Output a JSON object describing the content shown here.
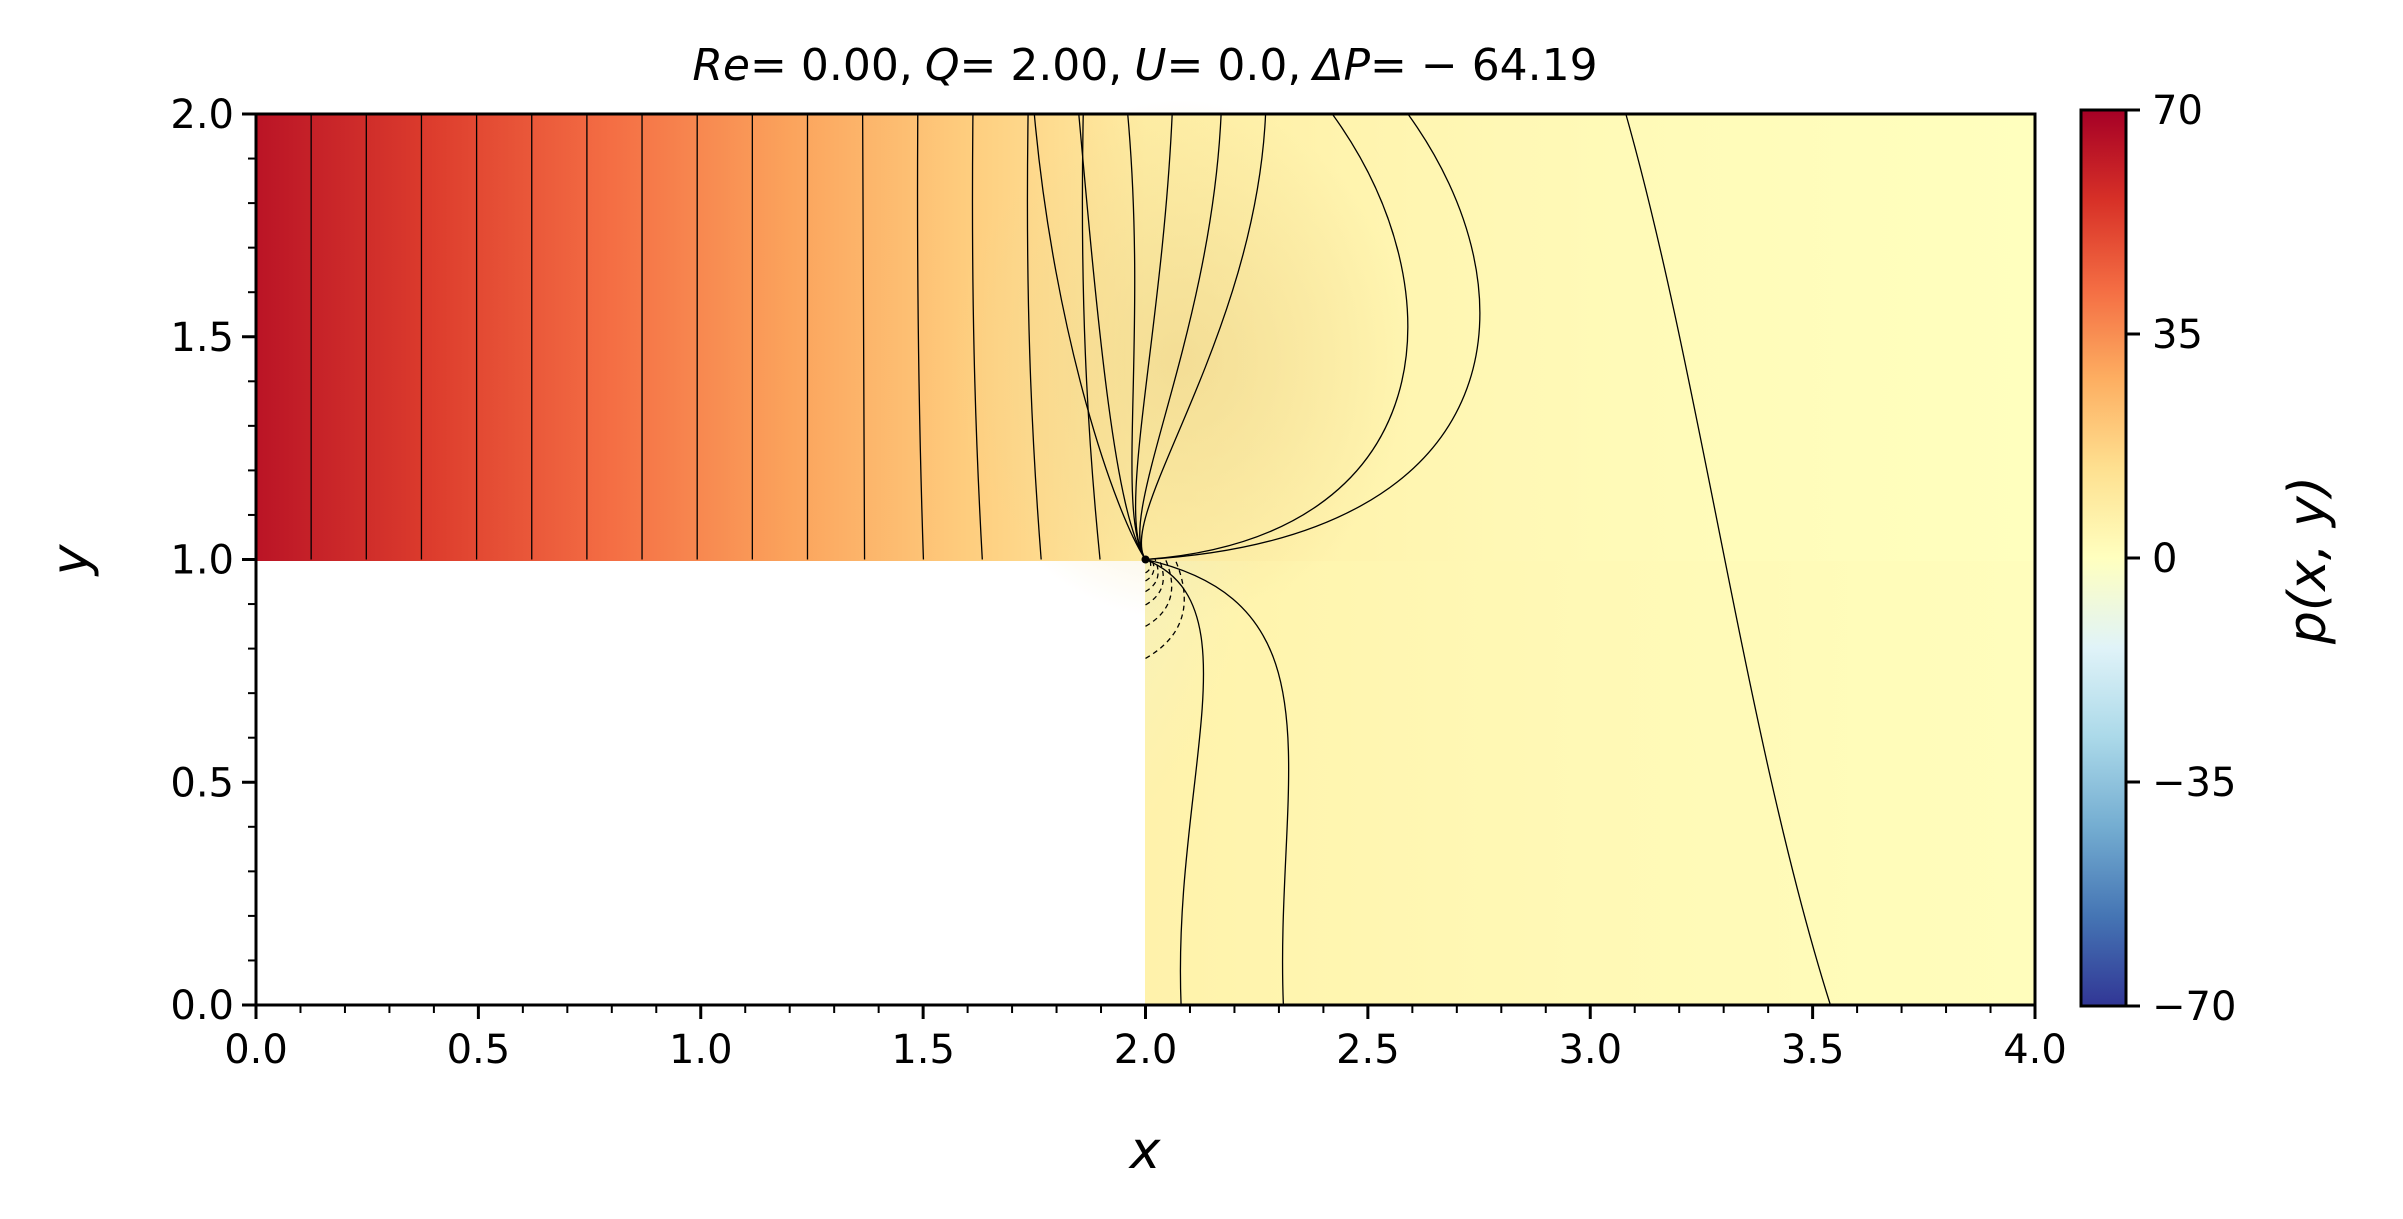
{
  "chart_data": {
    "type": "heatmap",
    "title_parts": {
      "re_label": "Re",
      "re_value": "= 0.00",
      "q_label": "Q",
      "q_value": "= 2.00",
      "u_label": "U",
      "u_value": "= 0.0",
      "dp_label": "ΔP",
      "dp_value": "= − 64.19",
      "separator": ","
    },
    "xlabel": "x",
    "ylabel": "y",
    "colorbar_label": "p(x, y)",
    "xlim": [
      0.0,
      4.0
    ],
    "ylim": [
      0.0,
      2.0
    ],
    "x_ticks": [
      "0.0",
      "0.5",
      "1.0",
      "1.5",
      "2.0",
      "2.5",
      "3.0",
      "3.5",
      "4.0"
    ],
    "y_ticks": [
      "0.0",
      "0.5",
      "1.0",
      "1.5",
      "2.0"
    ],
    "colorbar_ticks": [
      "70",
      "35",
      "0",
      "−35",
      "−70"
    ],
    "color_range": [
      -70,
      70
    ],
    "colormap": [
      "#313695",
      "#4575b4",
      "#74add1",
      "#abd9e9",
      "#e0f3f8",
      "#ffffbf",
      "#fee090",
      "#fdae61",
      "#f46d43",
      "#d73027",
      "#a50026"
    ],
    "step_geometry": {
      "step_x": 2.0,
      "step_y": 1.0
    },
    "inlet_pressure": 64.19,
    "outlet_pressure": 0.0,
    "grid": false
  }
}
